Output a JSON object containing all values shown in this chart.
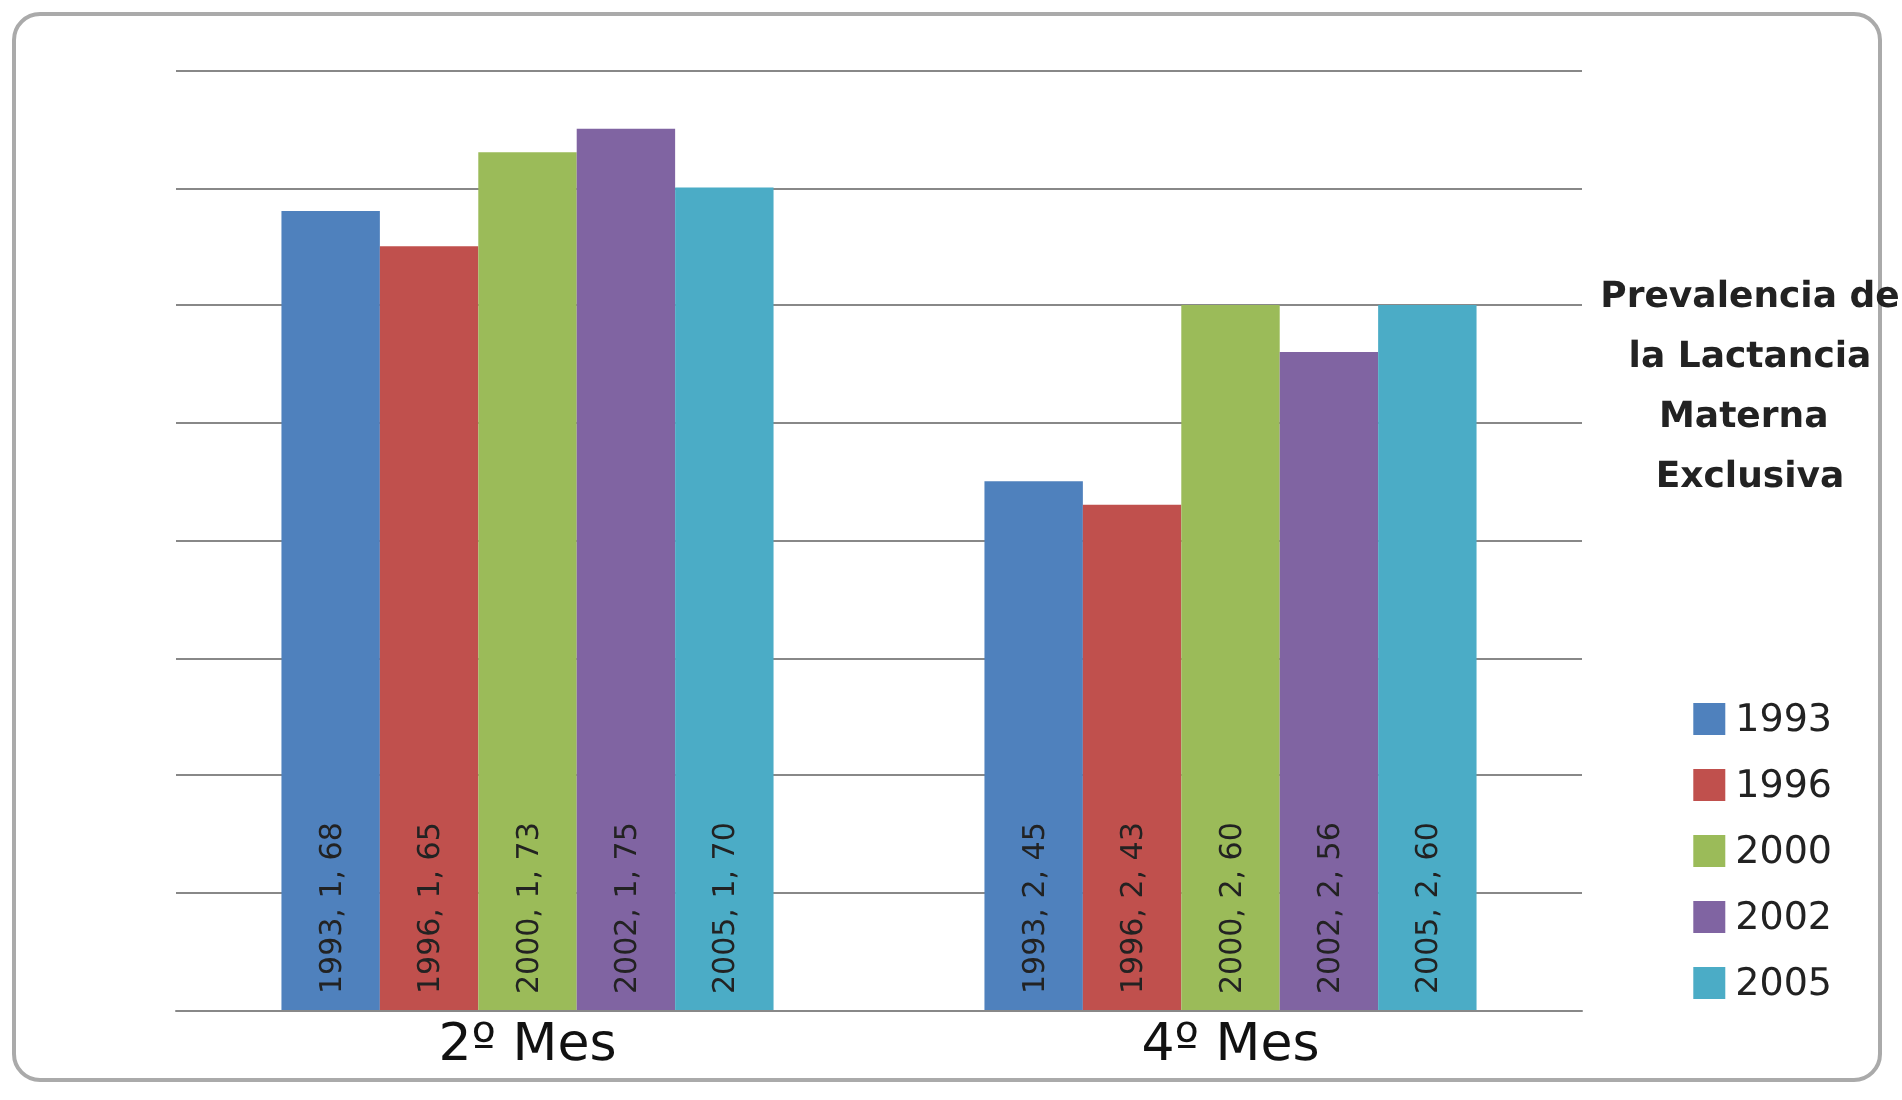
{
  "chart_data": {
    "type": "bar",
    "legend_title": "Prevalencia de la Lactancia Materna Exclusiva",
    "categories": [
      "2º Mes",
      "4º Mes"
    ],
    "series": [
      {
        "name": "1993",
        "color": "#4f81bd",
        "values": [
          68,
          45
        ],
        "value_labels": [
          "1993, 1, 68",
          "1993, 2, 45"
        ]
      },
      {
        "name": "1996",
        "color": "#c0504d",
        "values": [
          65,
          43
        ],
        "value_labels": [
          "1996, 1, 65",
          "1996, 2, 43"
        ]
      },
      {
        "name": "2000",
        "color": "#9bbb59",
        "values": [
          73,
          60
        ],
        "value_labels": [
          "2000, 1, 73",
          "2000, 2, 60"
        ]
      },
      {
        "name": "2002",
        "color": "#8064a2",
        "values": [
          75,
          56
        ],
        "value_labels": [
          "2002, 1, 75",
          "2002, 2, 56"
        ]
      },
      {
        "name": "2005",
        "color": "#4bacc6",
        "values": [
          70,
          60
        ],
        "value_labels": [
          "2005, 1, 70",
          "2005, 2, 60"
        ]
      }
    ],
    "ylim": [
      0,
      80
    ],
    "yticks": [
      {
        "value": 0,
        "label": null
      },
      {
        "value": 10,
        "label": null
      },
      {
        "value": 20,
        "label": null
      },
      {
        "value": 30,
        "label": null
      },
      {
        "value": 40,
        "label": null
      },
      {
        "value": 50,
        "label": null
      },
      {
        "value": 60,
        "label": null
      },
      {
        "value": 70,
        "label": null
      },
      {
        "value": 80,
        "label": null
      }
    ],
    "grid": "y",
    "legend": "right",
    "tick_labels": "x"
  }
}
